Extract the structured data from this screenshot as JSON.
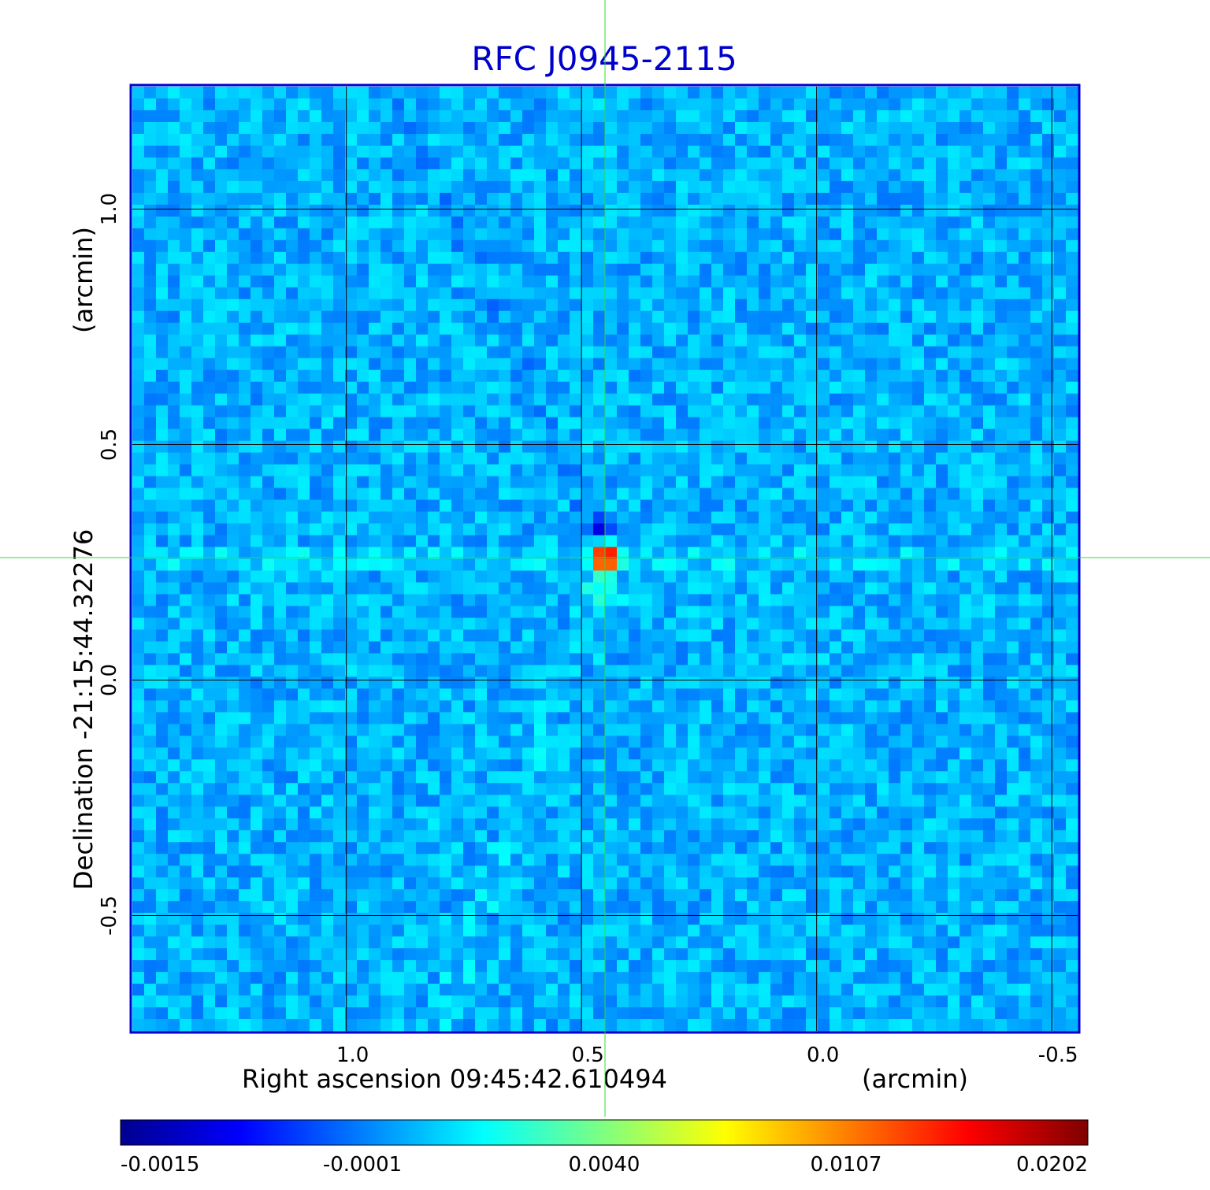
{
  "chart_data": {
    "type": "heatmap",
    "title": "RFC J0945-2115",
    "xlabel": "Right ascension  09:45:42.610494",
    "xunit": "(arcmin)",
    "ylabel": "Declination  -21:15:44.32276",
    "yunit": "(arcmin)",
    "xlim": [
      1.455,
      -0.555
    ],
    "ylim": [
      -0.745,
      1.26
    ],
    "x_ticks": [
      "1.0",
      "0.5",
      "0.0",
      "-0.5"
    ],
    "x_tick_values": [
      1.0,
      0.5,
      0.0,
      -0.5
    ],
    "y_ticks": [
      "1.0",
      "0.5",
      "0.0",
      "-0.5"
    ],
    "y_tick_values": [
      1.0,
      0.5,
      0.0,
      -0.5
    ],
    "grid": true,
    "crosshair": {
      "x": 0.45,
      "y": 0.26
    },
    "source_peak": {
      "x": 0.45,
      "y": 0.27,
      "value": 0.0202
    },
    "colorbar": {
      "orientation": "horizontal",
      "tick_labels": [
        "-0.0015",
        "-0.0001",
        "0.0040",
        "0.0107",
        "0.0202"
      ],
      "tick_values": [
        -0.0015,
        -0.0001,
        0.004,
        0.0107,
        0.0202
      ],
      "colormap": "jet"
    },
    "colors": {
      "background_field": "#2aaaf0",
      "grid": "#000000",
      "frame": "#0000cc",
      "crosshair": "#33dd33"
    }
  }
}
